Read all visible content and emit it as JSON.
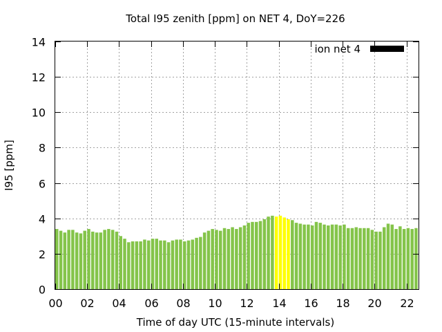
{
  "chart_data": {
    "type": "bar",
    "title": "Total I95 zenith [ppm] on NET 4, DoY=226",
    "xlabel": "Time of day UTC (15-minute intervals)",
    "ylabel": "I95 [ppm]",
    "xlim": [
      0,
      22.75
    ],
    "ylim": [
      0,
      14
    ],
    "x_ticks": [
      "00",
      "02",
      "04",
      "06",
      "08",
      "10",
      "12",
      "14",
      "16",
      "18",
      "20",
      "22"
    ],
    "y_ticks": [
      "0",
      "2",
      "4",
      "6",
      "8",
      "10",
      "12",
      "14"
    ],
    "grid": true,
    "legend": {
      "position": "top-right",
      "entries": [
        {
          "label": "ion net 4",
          "color": "#000000"
        }
      ]
    },
    "bar_interval_hours": 0.25,
    "default_color": "#84c44a",
    "highlight_color": "#ffff00",
    "highlight_hours": [
      13.75,
      14.0,
      14.25,
      14.5
    ],
    "hours": [
      0.0,
      0.25,
      0.5,
      0.75,
      1.0,
      1.25,
      1.5,
      1.75,
      2.0,
      2.25,
      2.5,
      2.75,
      3.0,
      3.25,
      3.5,
      3.75,
      4.0,
      4.25,
      4.5,
      4.75,
      5.0,
      5.25,
      5.5,
      5.75,
      6.0,
      6.25,
      6.5,
      6.75,
      7.0,
      7.25,
      7.5,
      7.75,
      8.0,
      8.25,
      8.5,
      8.75,
      9.0,
      9.25,
      9.5,
      9.75,
      10.0,
      10.25,
      10.5,
      10.75,
      11.0,
      11.25,
      11.5,
      11.75,
      12.0,
      12.25,
      12.5,
      12.75,
      13.0,
      13.25,
      13.5,
      13.75,
      14.0,
      14.25,
      14.5,
      14.75,
      15.0,
      15.25,
      15.5,
      15.75,
      16.0,
      16.25,
      16.5,
      16.75,
      17.0,
      17.25,
      17.5,
      17.75,
      18.0,
      18.25,
      18.5,
      18.75,
      19.0,
      19.25,
      19.5,
      19.75,
      20.0,
      20.25,
      20.5,
      20.75,
      21.0,
      21.25,
      21.5,
      21.75,
      22.0,
      22.25,
      22.5,
      22.75
    ],
    "values": [
      3.4,
      3.3,
      3.2,
      3.35,
      3.35,
      3.2,
      3.15,
      3.3,
      3.4,
      3.25,
      3.2,
      3.2,
      3.35,
      3.4,
      3.35,
      3.25,
      3.0,
      2.85,
      2.65,
      2.7,
      2.7,
      2.7,
      2.8,
      2.75,
      2.85,
      2.85,
      2.75,
      2.75,
      2.65,
      2.75,
      2.8,
      2.8,
      2.7,
      2.75,
      2.8,
      2.9,
      2.95,
      3.2,
      3.3,
      3.4,
      3.35,
      3.3,
      3.45,
      3.4,
      3.5,
      3.4,
      3.5,
      3.6,
      3.75,
      3.8,
      3.8,
      3.85,
      3.95,
      4.1,
      4.15,
      4.1,
      4.15,
      4.05,
      3.95,
      3.9,
      3.75,
      3.7,
      3.65,
      3.65,
      3.6,
      3.8,
      3.75,
      3.65,
      3.6,
      3.65,
      3.65,
      3.6,
      3.65,
      3.45,
      3.45,
      3.5,
      3.45,
      3.45,
      3.45,
      3.35,
      3.25,
      3.25,
      3.5,
      3.7,
      3.65,
      3.4,
      3.55,
      3.4,
      3.45,
      3.4,
      3.45,
      3.45
    ]
  }
}
